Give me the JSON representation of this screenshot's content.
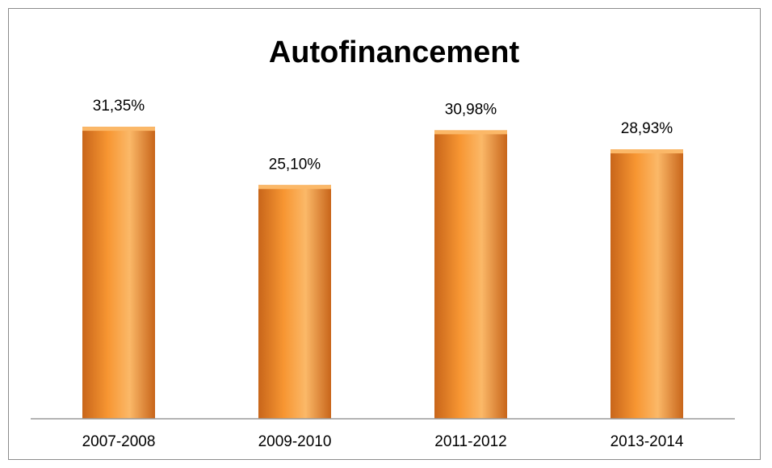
{
  "chart_data": {
    "type": "bar",
    "title": "Autofinancement",
    "categories": [
      "2007-2008",
      "2009-2010",
      "2011-2012",
      "2013-2014"
    ],
    "values": [
      31.35,
      25.1,
      30.98,
      28.93
    ],
    "data_labels": [
      "31,35%",
      "25,10%",
      "30,98%",
      "28,93%"
    ],
    "ylim": [
      0,
      35
    ],
    "xlabel": "",
    "ylabel": "",
    "grid": false,
    "legend": "none",
    "colors": {
      "bar": "#f79632",
      "bar_dark": "#c8651a",
      "bar_light": "#fbb868",
      "axis": "#9a9a9a"
    }
  }
}
